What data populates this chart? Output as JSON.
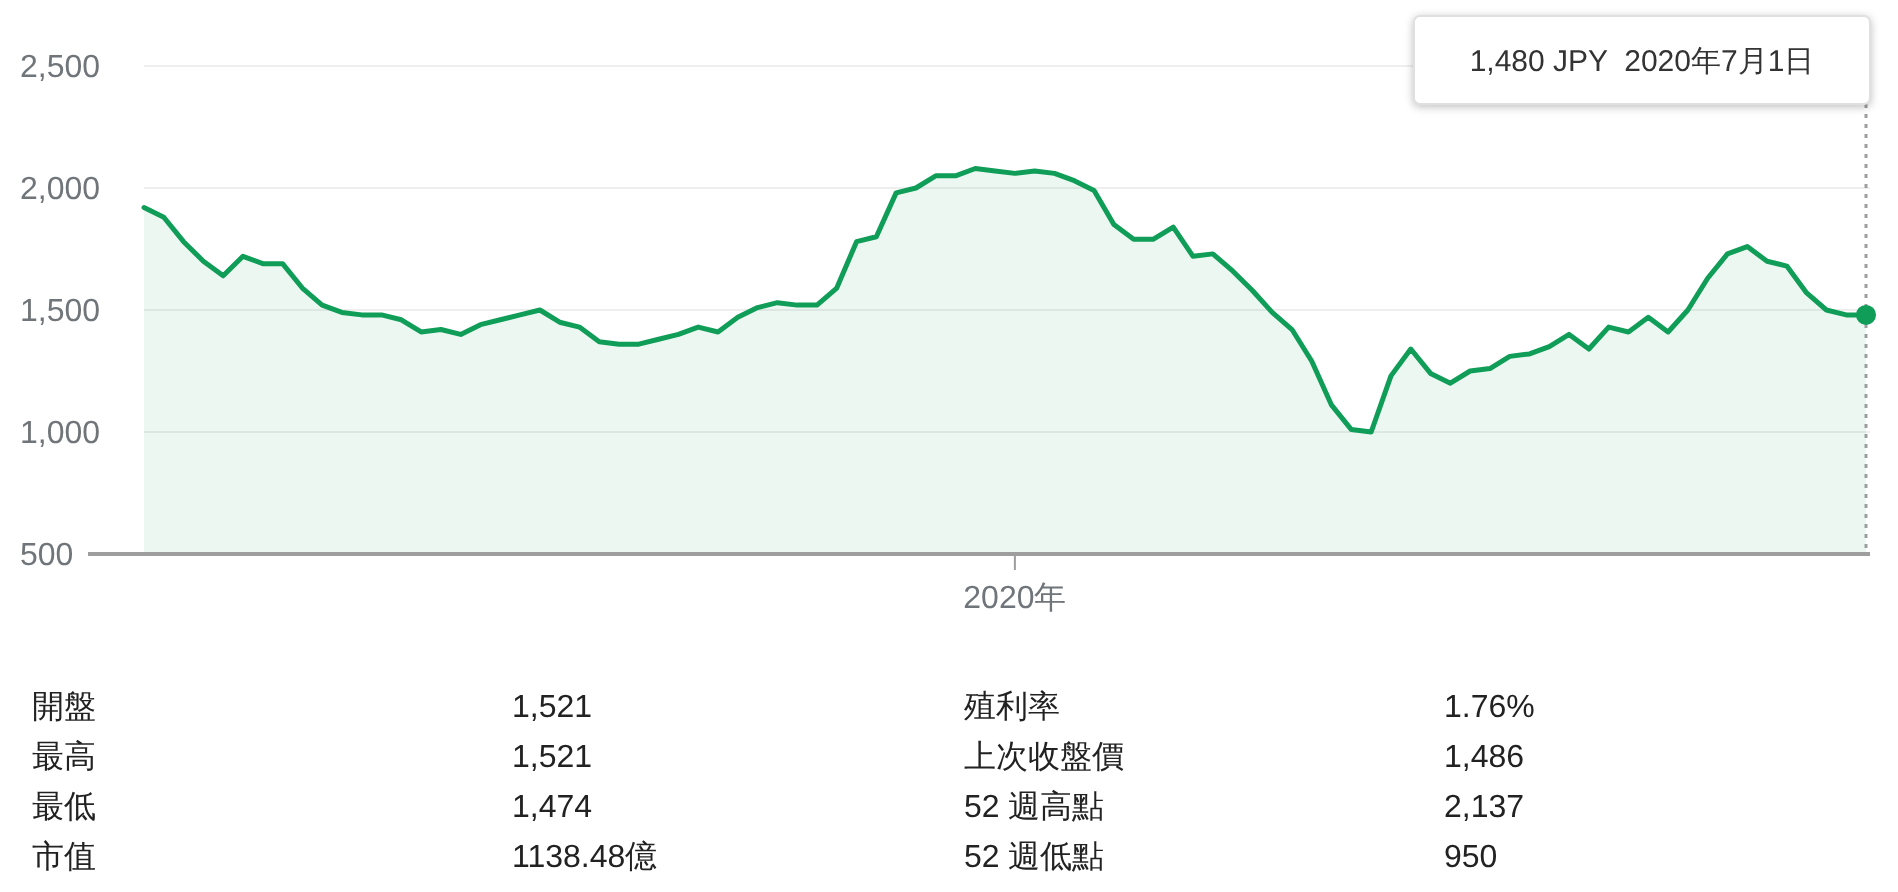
{
  "chart_data": [
    {
      "type": "area",
      "ylim": [
        500,
        2500
      ],
      "yticks": [
        {
          "value": 500,
          "label": "500"
        },
        {
          "value": 1000,
          "label": "1,000"
        },
        {
          "value": 1500,
          "label": "1,500"
        },
        {
          "value": 2000,
          "label": "2,000"
        },
        {
          "value": 2500,
          "label": "2,500"
        }
      ],
      "grid": "y",
      "categories": [
        null,
        null,
        null,
        null,
        null,
        null,
        null,
        null,
        null,
        null,
        null,
        null,
        null,
        null,
        null,
        null,
        null,
        null,
        null,
        null,
        null,
        null,
        null,
        null,
        null,
        null,
        null,
        null,
        null,
        null,
        null,
        null,
        null,
        null,
        null,
        null,
        null,
        null,
        null,
        null,
        null,
        null,
        null,
        null,
        "2020年",
        null,
        null,
        null,
        null,
        null,
        null,
        null,
        null,
        null,
        null,
        null,
        null,
        null,
        null,
        null,
        null,
        null,
        null,
        null,
        null,
        null,
        null,
        null,
        null,
        null,
        null,
        null,
        null,
        null,
        null,
        null,
        null,
        null,
        null,
        null,
        null,
        null,
        null,
        null,
        null,
        null,
        null,
        null
      ],
      "series": [
        {
          "color": "#0f9d58",
          "values": [
            1920,
            1880,
            1780,
            1700,
            1640,
            1720,
            1690,
            1690,
            1590,
            1520,
            1490,
            1480,
            1480,
            1460,
            1410,
            1420,
            1400,
            1440,
            1460,
            1480,
            1500,
            1450,
            1430,
            1370,
            1360,
            1360,
            1380,
            1400,
            1430,
            1410,
            1470,
            1510,
            1530,
            1520,
            1520,
            1590,
            1780,
            1800,
            1980,
            2000,
            2050,
            2050,
            2080,
            2070,
            2060,
            2070,
            2060,
            2030,
            1990,
            1850,
            1790,
            1790,
            1840,
            1720,
            1730,
            1660,
            1580,
            1490,
            1420,
            1290,
            1110,
            1010,
            1000,
            1230,
            1340,
            1240,
            1200,
            1250,
            1260,
            1310,
            1320,
            1350,
            1400,
            1340,
            1430,
            1410,
            1470,
            1410,
            1500,
            1630,
            1730,
            1760,
            1700,
            1680,
            1570,
            1500,
            1480,
            1480
          ]
        }
      ],
      "annotations": [
        "1,480 JPY  2020年7月1日"
      ]
    },
    {
      "type": "other",
      "annotations": [
        "開盤",
        "1,521",
        "最高",
        "1,521",
        "最低",
        "1,474",
        "市值",
        "1138.48億",
        "殖利率",
        "1.76%",
        "上次收盤價",
        "1,486",
        "52 週高點",
        "2,137",
        "52 週低點",
        "950"
      ]
    }
  ]
}
